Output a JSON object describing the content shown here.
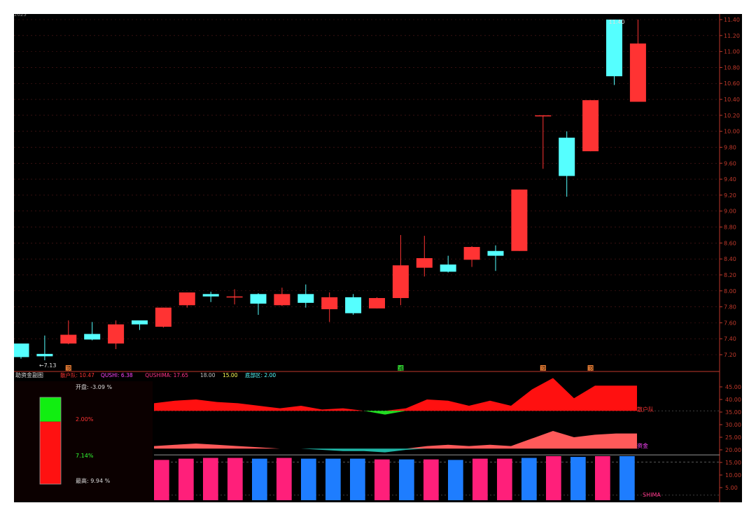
{
  "colors": {
    "up": "#ff3333",
    "down": "#55ffff",
    "axis": "#c0392b",
    "grid": "#5a1a1a",
    "blue_bar": "#1e7dff",
    "pink_bar": "#ff1f7a",
    "green": "#22dd22",
    "teal": "#1fb5a5"
  },
  "top_strip_label": "2025",
  "chart_data": [
    {
      "type": "candlestick",
      "ylim": [
        7.0,
        11.7
      ],
      "y_ticks": [
        "11.40",
        "11.20",
        "11.00",
        "10.80",
        "10.60",
        "10.40",
        "10.20",
        "10.00",
        "9.80",
        "9.60",
        "9.40",
        "9.20",
        "9.00",
        "8.80",
        "8.60",
        "8.40",
        "8.20",
        "8.00",
        "7.80",
        "7.60",
        "7.40",
        "7.20"
      ],
      "candles": [
        {
          "o": 7.34,
          "h": 7.34,
          "l": 7.15,
          "c": 7.17
        },
        {
          "o": 7.21,
          "h": 7.44,
          "l": 7.13,
          "c": 7.18
        },
        {
          "o": 7.34,
          "h": 7.63,
          "l": 7.33,
          "c": 7.45
        },
        {
          "o": 7.46,
          "h": 7.61,
          "l": 7.38,
          "c": 7.39
        },
        {
          "o": 7.34,
          "h": 7.63,
          "l": 7.27,
          "c": 7.58
        },
        {
          "o": 7.63,
          "h": 7.63,
          "l": 7.51,
          "c": 7.58
        },
        {
          "o": 7.55,
          "h": 7.79,
          "l": 7.54,
          "c": 7.79
        },
        {
          "o": 7.82,
          "h": 7.98,
          "l": 7.79,
          "c": 7.98
        },
        {
          "o": 7.96,
          "h": 7.99,
          "l": 7.86,
          "c": 7.93
        },
        {
          "o": 7.93,
          "h": 8.02,
          "l": 7.83,
          "c": 7.93
        },
        {
          "o": 7.96,
          "h": 7.97,
          "l": 7.7,
          "c": 7.84
        },
        {
          "o": 7.82,
          "h": 8.04,
          "l": 7.81,
          "c": 7.96
        },
        {
          "o": 7.96,
          "h": 8.08,
          "l": 7.79,
          "c": 7.85
        },
        {
          "o": 7.77,
          "h": 7.98,
          "l": 7.61,
          "c": 7.92
        },
        {
          "o": 7.92,
          "h": 7.96,
          "l": 7.7,
          "c": 7.72
        },
        {
          "o": 7.78,
          "h": 7.92,
          "l": 7.78,
          "c": 7.91
        },
        {
          "o": 7.91,
          "h": 8.7,
          "l": 7.82,
          "c": 8.32
        },
        {
          "o": 8.29,
          "h": 8.69,
          "l": 8.18,
          "c": 8.41
        },
        {
          "o": 8.33,
          "h": 8.44,
          "l": 8.23,
          "c": 8.24
        },
        {
          "o": 8.39,
          "h": 8.56,
          "l": 8.3,
          "c": 8.55
        },
        {
          "o": 8.5,
          "h": 8.57,
          "l": 8.25,
          "c": 8.44
        },
        {
          "o": 8.5,
          "h": 9.27,
          "l": 8.5,
          "c": 9.27
        },
        {
          "o": 10.2,
          "h": 10.2,
          "l": 9.53,
          "c": 10.2
        },
        {
          "o": 9.92,
          "h": 10.0,
          "l": 9.18,
          "c": 9.44
        },
        {
          "o": 9.75,
          "h": 10.39,
          "l": 9.75,
          "c": 10.39
        },
        {
          "o": 11.4,
          "h": 11.4,
          "l": 10.58,
          "c": 10.69
        },
        {
          "o": 10.37,
          "h": 11.4,
          "l": 10.37,
          "c": 11.1
        }
      ],
      "annotations": [
        {
          "candle": 1,
          "text": "←7.13"
        },
        {
          "candle": 25,
          "text": "11.40"
        }
      ],
      "signals": [
        {
          "candle": 2,
          "text": "顶",
          "color": "#ff8a3a"
        },
        {
          "candle": 16,
          "text": "减",
          "color": "#33dd33"
        },
        {
          "candle": 22,
          "text": "顶",
          "color": "#ff8a3a"
        },
        {
          "candle": 24,
          "text": "顶",
          "color": "#ff8a3a"
        }
      ]
    },
    {
      "type": "area",
      "title": "助资金副图",
      "legend": [
        {
          "text": "散户队: 10.47",
          "color": "#ff3333"
        },
        {
          "text": "QUSHI: 6.38",
          "color": "#ff44ff"
        },
        {
          "text": "QUSHIMA: 17.65",
          "color": "#ff3388"
        },
        {
          "text": "18.00",
          "color": "#c0c0c0"
        },
        {
          "text": "15.00",
          "color": "#ffff55"
        },
        {
          "text": "底部区: 2.00",
          "color": "#55ffff"
        }
      ],
      "ylim": [
        0,
        50
      ],
      "y_ticks": [
        "45.00",
        "40.00",
        "35.00",
        "30.00",
        "25.00",
        "20.00",
        "15.00",
        "10.00",
        "5.00"
      ],
      "series": [
        {
          "name": "散户队",
          "baseline": 35.5,
          "values": [
            38.5,
            39.5,
            40.0,
            39.0,
            38.5,
            37.5,
            36.5,
            37.5,
            36.0,
            36.5,
            35.5,
            34.0,
            36.5,
            40.0,
            39.5,
            37.5,
            39.5,
            37.5,
            44.0,
            48.5,
            40.5,
            45.5,
            45.5,
            45.5
          ]
        },
        {
          "name": "资金",
          "baseline": 20.5,
          "values": [
            21.5,
            22.0,
            22.5,
            22.0,
            21.5,
            21.0,
            20.5,
            20.5,
            20.0,
            19.5,
            19.5,
            19.0,
            20.0,
            21.5,
            22.0,
            21.5,
            22.0,
            21.5,
            24.5,
            27.5,
            25.0,
            26.0,
            26.5,
            26.5
          ]
        }
      ],
      "series_labels": [
        {
          "text": "散户队",
          "color": "#ff3333"
        },
        {
          "text": "资金",
          "color": "#ff44ff"
        },
        {
          "text": "SHIMA",
          "color": "#ff3388"
        }
      ],
      "bars": {
        "colors": [
          "pink",
          "pink",
          "pink",
          "pink",
          "blue",
          "pink",
          "blue",
          "blue",
          "blue",
          "pink",
          "blue",
          "pink",
          "blue",
          "pink",
          "pink",
          "blue",
          "pink",
          "blue",
          "pink",
          "blue"
        ],
        "values": [
          16.0,
          16.5,
          16.8,
          16.8,
          16.5,
          16.8,
          16.5,
          16.5,
          16.5,
          16.2,
          16.2,
          16.2,
          16.0,
          16.5,
          16.5,
          16.8,
          17.5,
          17.2,
          17.5,
          17.5
        ]
      },
      "hline": 18.0
    }
  ],
  "side_panel": {
    "open_label": "开盘: -3.09 %",
    "mid_label_1": "2.00%",
    "mid_label_2": "7.14%",
    "high_label": "最高: 9.94 %",
    "green_fraction": 0.28
  }
}
